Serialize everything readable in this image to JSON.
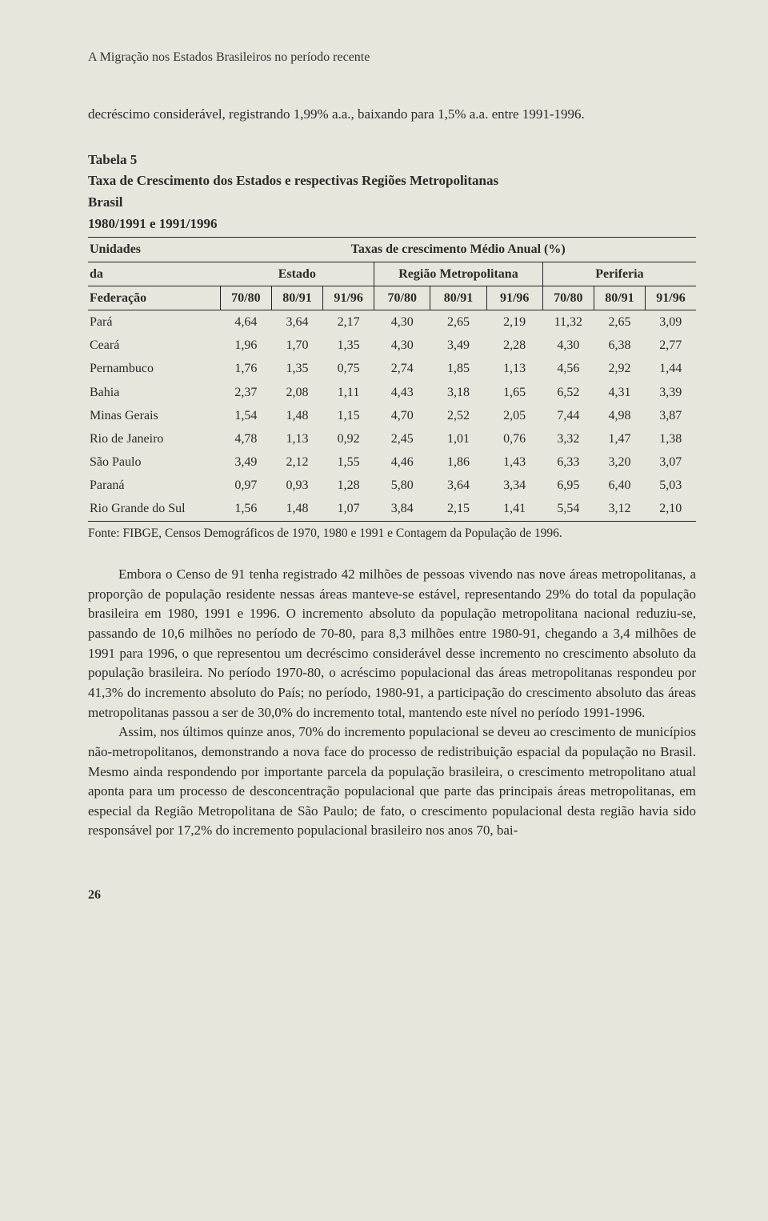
{
  "running_head": "A Migração nos Estados Brasileiros no período recente",
  "intro": "decréscimo considerável, registrando 1,99% a.a., baixando para 1,5% a.a. entre 1991-1996.",
  "table": {
    "type": "table",
    "title": "Tabela 5",
    "subtitle1": "Taxa de Crescimento dos Estados e respectivas Regiões Metropolitanas",
    "subtitle2": "Brasil",
    "subtitle3": "1980/1991 e 1991/1996",
    "header": {
      "unidades_line1": "Unidades",
      "unidades_line2": "da",
      "unidades_line3": "Federação",
      "super": "Taxas de crescimento Médio Anual (%)",
      "group_estado": "Estado",
      "group_regiao": "Região Metropolitana",
      "group_periferia": "Periferia",
      "periods": [
        "70/80",
        "80/91",
        "91/96",
        "70/80",
        "80/91",
        "91/96",
        "70/80",
        "80/91",
        "91/96"
      ]
    },
    "rows": [
      {
        "name": "Pará",
        "v": [
          "4,64",
          "3,64",
          "2,17",
          "4,30",
          "2,65",
          "2,19",
          "11,32",
          "2,65",
          "3,09"
        ]
      },
      {
        "name": "Ceará",
        "v": [
          "1,96",
          "1,70",
          "1,35",
          "4,30",
          "3,49",
          "2,28",
          "4,30",
          "6,38",
          "2,77"
        ]
      },
      {
        "name": "Pernambuco",
        "v": [
          "1,76",
          "1,35",
          "0,75",
          "2,74",
          "1,85",
          "1,13",
          "4,56",
          "2,92",
          "1,44"
        ]
      },
      {
        "name": "Bahia",
        "v": [
          "2,37",
          "2,08",
          "1,11",
          "4,43",
          "3,18",
          "1,65",
          "6,52",
          "4,31",
          "3,39"
        ]
      },
      {
        "name": "Minas Gerais",
        "v": [
          "1,54",
          "1,48",
          "1,15",
          "4,70",
          "2,52",
          "2,05",
          "7,44",
          "4,98",
          "3,87"
        ]
      },
      {
        "name": "Rio de Janeiro",
        "v": [
          "4,78",
          "1,13",
          "0,92",
          "2,45",
          "1,01",
          "0,76",
          "3,32",
          "1,47",
          "1,38"
        ]
      },
      {
        "name": "São Paulo",
        "v": [
          "3,49",
          "2,12",
          "1,55",
          "4,46",
          "1,86",
          "1,43",
          "6,33",
          "3,20",
          "3,07"
        ]
      },
      {
        "name": "Paraná",
        "v": [
          "0,97",
          "0,93",
          "1,28",
          "5,80",
          "3,64",
          "3,34",
          "6,95",
          "6,40",
          "5,03"
        ]
      },
      {
        "name": "Rio Grande do Sul",
        "v": [
          "1,56",
          "1,48",
          "1,07",
          "3,84",
          "2,15",
          "1,41",
          "5,54",
          "3,12",
          "2,10"
        ]
      }
    ],
    "source": "Fonte: FIBGE, Censos Demográficos de 1970, 1980 e 1991 e Contagem da População de 1996.",
    "border_color": "#222222",
    "background_color": "#e8e5dc",
    "header_fontsize": 16,
    "cell_fontsize": 16
  },
  "para1": "Embora o Censo de 91 tenha registrado 42 milhões de pessoas vivendo nas nove áreas metropolitanas, a proporção de população residente nessas áreas manteve-se estável, representando 29% do total da população brasileira em 1980, 1991 e 1996. O incremento absoluto da população metropolitana nacional reduziu-se, passando de 10,6 milhões no período de 70-80, para 8,3 milhões entre 1980-91, chegando a 3,4 milhões de 1991 para 1996, o que representou um decréscimo considerável desse incremento no crescimento absoluto da população brasileira. No período 1970-80, o acréscimo populacional das áreas metropolitanas respondeu por 41,3% do incremento absoluto do País; no período, 1980-91, a participação do crescimento absoluto das áreas metropolitanas passou a ser de 30,0% do incremento total, mantendo este nível no período 1991-1996.",
  "para2": "Assim, nos últimos quinze anos, 70% do incremento populacional se deveu ao crescimento de municípios não-metropolitanos, demonstrando a nova face do processo de redistribuição espacial da população no Brasil. Mesmo ainda respondendo por importante parcela da população brasileira, o crescimento metropolitano atual aponta para um processo de desconcentração populacional que parte das principais áreas metropolitanas, em especial da Região Metropolitana de São Paulo; de fato, o crescimento populacional desta região havia sido responsável por 17,2% do incremento populacional brasileiro nos anos 70, bai-",
  "page_number": "26"
}
